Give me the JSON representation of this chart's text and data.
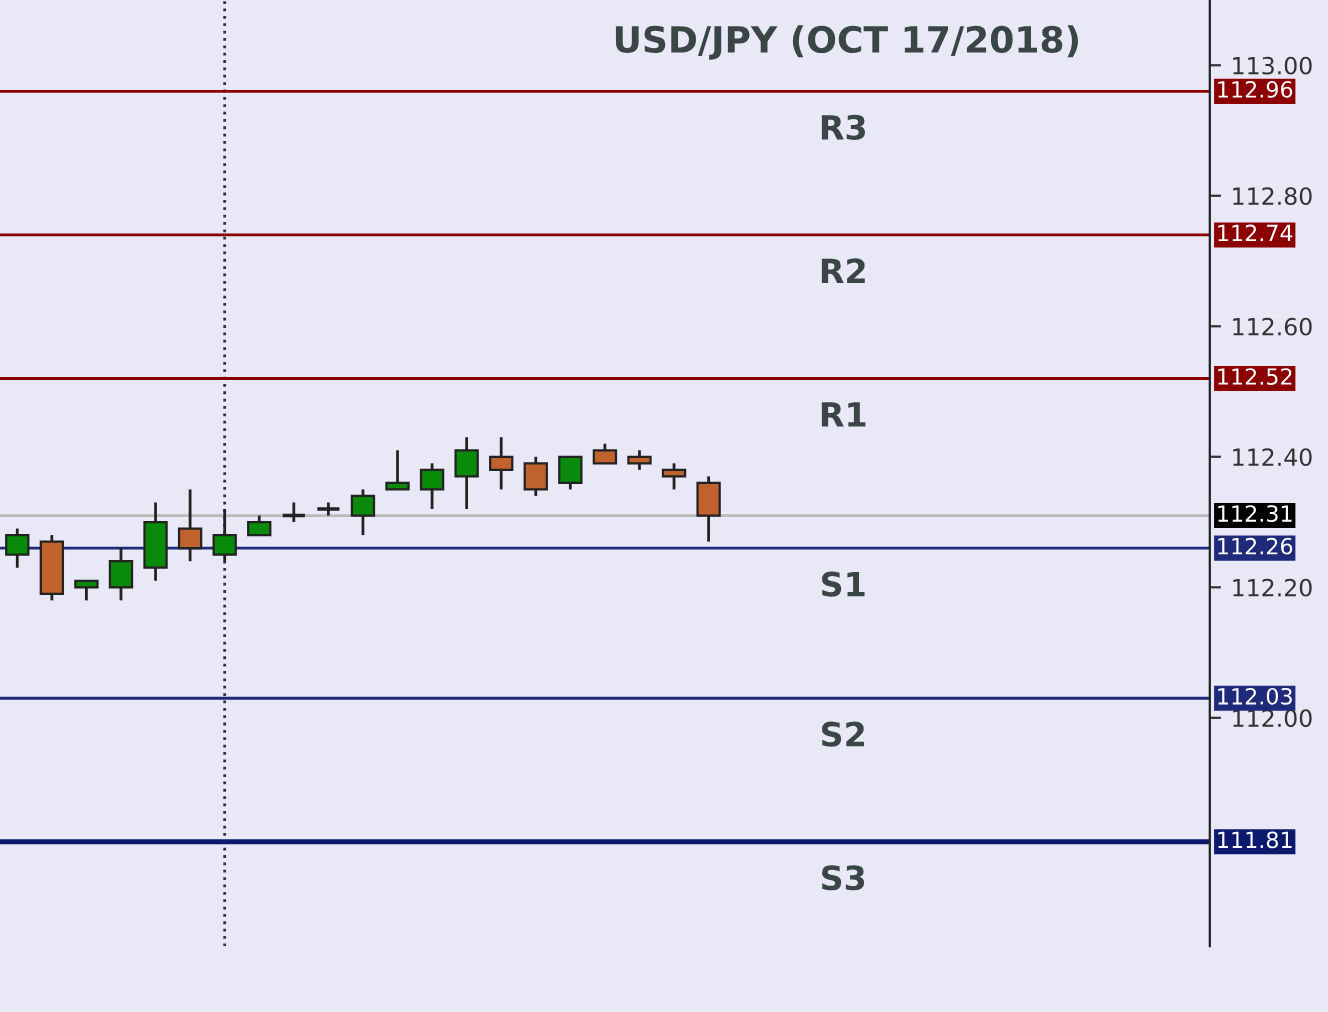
{
  "chart_data": {
    "type": "candlestick",
    "title": "USD/JPY (OCT 17/2018)",
    "categories": [
      null,
      null,
      null,
      null,
      null,
      null,
      null,
      null,
      null,
      null,
      null,
      null,
      null,
      null,
      null,
      null,
      null,
      null,
      null,
      null,
      null,
      null,
      null,
      null,
      null,
      null,
      null,
      null,
      null,
      null,
      null,
      null,
      null,
      null,
      null
    ],
    "ohlc": [
      [
        112.25,
        112.29,
        112.23,
        112.28
      ],
      [
        112.27,
        112.28,
        112.18,
        112.19
      ],
      [
        112.2,
        112.21,
        112.18,
        112.21
      ],
      [
        112.2,
        112.26,
        112.18,
        112.24
      ],
      [
        112.23,
        112.33,
        112.21,
        112.3
      ],
      [
        112.29,
        112.35,
        112.24,
        112.26
      ],
      [
        112.25,
        112.32,
        112.24,
        112.28
      ],
      [
        112.28,
        112.31,
        112.28,
        112.3
      ],
      [
        112.31,
        112.33,
        112.3,
        112.31
      ],
      [
        112.32,
        112.33,
        112.31,
        112.32
      ],
      [
        112.31,
        112.35,
        112.28,
        112.34
      ],
      [
        112.35,
        112.41,
        112.35,
        112.36
      ],
      [
        112.35,
        112.39,
        112.32,
        112.38
      ],
      [
        112.37,
        112.43,
        112.32,
        112.41
      ],
      [
        112.4,
        112.43,
        112.35,
        112.38
      ],
      [
        112.39,
        112.4,
        112.34,
        112.35
      ],
      [
        112.36,
        112.4,
        112.35,
        112.4
      ],
      [
        112.41,
        112.42,
        112.39,
        112.39
      ],
      [
        112.4,
        112.41,
        112.38,
        112.39
      ],
      [
        112.38,
        112.39,
        112.35,
        112.37
      ],
      [
        112.36,
        112.37,
        112.27,
        112.31
      ],
      null,
      null,
      null,
      null,
      null,
      null,
      null,
      null,
      null,
      null,
      null,
      null,
      null,
      null
    ],
    "colors": [
      "#0a8a0a",
      "#c0622e",
      "#0a8a0a",
      "#0a8a0a",
      "#0a8a0a",
      "#c0622e",
      "#0a8a0a",
      "#0a8a0a",
      "#222222",
      "#222222",
      "#0a8a0a",
      "#0a8a0a",
      "#0a8a0a",
      "#0a8a0a",
      "#c0622e",
      "#c0622e",
      "#0a8a0a",
      "#c0622e",
      "#c0622e",
      "#c0622e",
      "#c0622e",
      null,
      null,
      null,
      null,
      null,
      null,
      null,
      null,
      null,
      null,
      null,
      null,
      null,
      null
    ],
    "ylim": [
      111.65,
      113.1
    ],
    "yticks": [
      {
        "value": 112.0,
        "label": "112.00"
      },
      {
        "value": 112.2,
        "label": "112.20"
      },
      {
        "value": 112.4,
        "label": "112.40"
      },
      {
        "value": 112.6,
        "label": "112.60"
      },
      {
        "value": 112.8,
        "label": "112.80"
      },
      {
        "value": 113.0,
        "label": "113.00"
      }
    ],
    "tick_labels": "y",
    "grid": false,
    "ref_lines": [
      {
        "axis": "y",
        "value": 112.96,
        "label": "112.96",
        "color": "#8b0000"
      },
      {
        "axis": "y",
        "value": 112.74,
        "label": "112.74",
        "color": "#8b0000"
      },
      {
        "axis": "y",
        "value": 112.52,
        "label": "112.52",
        "color": "#8b0000"
      },
      {
        "axis": "y",
        "value": 112.31,
        "label": "112.31",
        "color": "#bbbbbb"
      },
      {
        "axis": "y",
        "value": 112.26,
        "label": "112.26",
        "color": "#1f2a7a"
      },
      {
        "axis": "y",
        "value": 112.03,
        "label": "112.03",
        "color": "#1f2a7a"
      },
      {
        "axis": "y",
        "value": 111.81,
        "label": "111.81",
        "color": "#0c1a6e"
      }
    ],
    "annotations": [
      {
        "text": "R3",
        "y": 112.96
      },
      {
        "text": "R2",
        "y": 112.74
      },
      {
        "text": "R1",
        "y": 112.52
      },
      {
        "text": "S1",
        "y": 112.26
      },
      {
        "text": "S2",
        "y": 112.03
      },
      {
        "text": "S3",
        "y": 111.81
      }
    ]
  }
}
